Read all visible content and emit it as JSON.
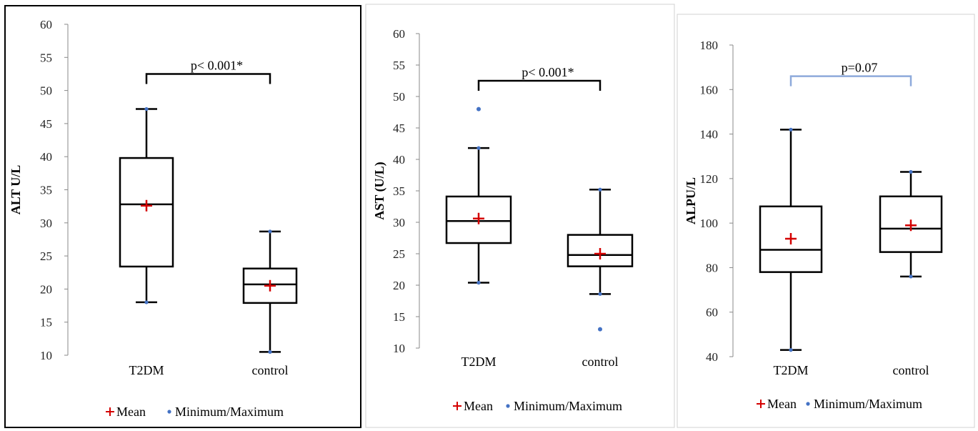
{
  "chart_data": [
    {
      "type": "box",
      "ylabel": "ALT U/L",
      "ylim": [
        10,
        60
      ],
      "yticks": [
        10,
        15,
        20,
        25,
        30,
        35,
        40,
        45,
        50,
        55,
        60
      ],
      "categories": [
        "T2DM",
        "control"
      ],
      "boxes": [
        {
          "min": 18,
          "q1": 23.4,
          "median": 32.8,
          "q3": 39.8,
          "max": 47.2,
          "mean": 32.6,
          "outliers": []
        },
        {
          "min": 10.5,
          "q1": 17.9,
          "median": 20.7,
          "q3": 23.1,
          "max": 28.7,
          "mean": 20.5,
          "outliers": []
        }
      ],
      "significance": {
        "label": "p< 0.001*",
        "y": 52.5,
        "color": "#000000"
      },
      "legend": {
        "mean": "Mean",
        "minmax": "Minimum/Maximum",
        "position": "bottom"
      }
    },
    {
      "type": "box",
      "ylabel": "AST (U/L)",
      "ylim": [
        10,
        60
      ],
      "yticks": [
        10,
        15,
        20,
        25,
        30,
        35,
        40,
        45,
        50,
        55,
        60
      ],
      "categories": [
        "T2DM",
        "control"
      ],
      "boxes": [
        {
          "min": 20.4,
          "q1": 26.7,
          "median": 30.2,
          "q3": 34.1,
          "max": 41.8,
          "mean": 30.6,
          "outliers": [
            48
          ]
        },
        {
          "min": 18.6,
          "q1": 23.0,
          "median": 24.8,
          "q3": 28.0,
          "max": 35.2,
          "mean": 25.0,
          "outliers": [
            13
          ]
        }
      ],
      "significance": {
        "label": "p< 0.001*",
        "y": 52.5,
        "color": "#000000"
      },
      "legend": {
        "mean": "Mean",
        "minmax": "Minimum/Maximum",
        "position": "bottom"
      }
    },
    {
      "type": "box",
      "ylabel": "ALPU/L",
      "ylim": [
        40,
        180
      ],
      "yticks": [
        40,
        60,
        80,
        100,
        120,
        140,
        160,
        180
      ],
      "categories": [
        "T2DM",
        "control"
      ],
      "boxes": [
        {
          "min": 43,
          "q1": 78,
          "median": 88,
          "q3": 107.5,
          "max": 142,
          "mean": 93,
          "outliers": []
        },
        {
          "min": 76,
          "q1": 87,
          "median": 97.5,
          "q3": 112,
          "max": 123,
          "mean": 99,
          "outliers": []
        }
      ],
      "significance": {
        "label": "p=0.07",
        "y": 166,
        "color": "#8eaadb"
      },
      "legend": {
        "mean": "Mean",
        "minmax": "Minimum/Maximum",
        "position": "bottom"
      }
    }
  ],
  "colors": {
    "mean_marker": "#d40000",
    "minmax_marker": "#4472c4",
    "box_stroke": "#000000"
  }
}
